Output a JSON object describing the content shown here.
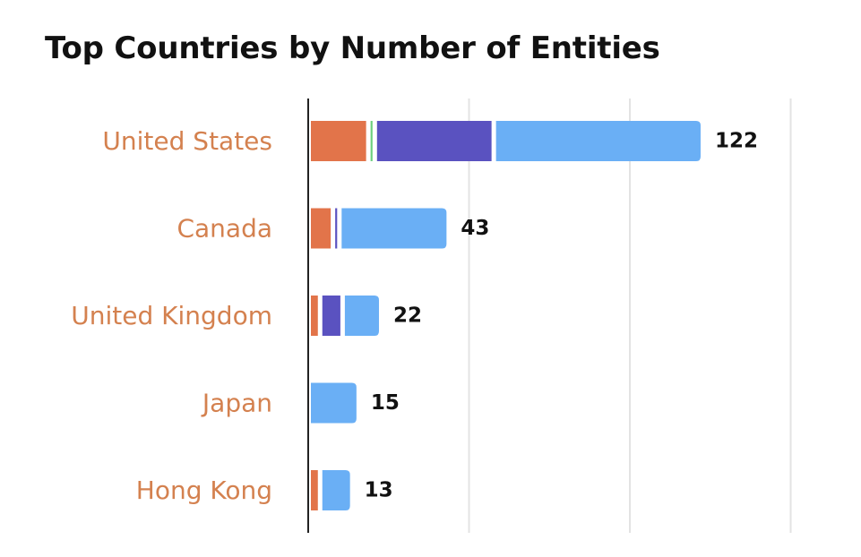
{
  "chart_data": {
    "type": "bar",
    "orientation": "horizontal",
    "stacked": true,
    "title": "Top Countries by Number of Entities",
    "xlabel": "",
    "ylabel": "",
    "categories": [
      "United States",
      "Canada",
      "United Kingdom",
      "Japan",
      "Hong Kong"
    ],
    "series": [
      {
        "values": [
          18,
          7,
          3,
          0,
          3
        ],
        "color": "#e2744a"
      },
      {
        "values": [
          2,
          0,
          0,
          0,
          0
        ],
        "color": "#6ccf7e"
      },
      {
        "values": [
          37,
          2,
          7,
          0,
          0
        ],
        "color": "#5a52c0"
      },
      {
        "values": [
          65,
          34,
          12,
          15,
          10
        ],
        "color": "#6aaff5"
      }
    ],
    "totals": [
      "122",
      "43",
      "22",
      "15",
      "13"
    ],
    "xlim": [
      0,
      150
    ],
    "grid": true,
    "category_label_color": "#d4814f"
  }
}
